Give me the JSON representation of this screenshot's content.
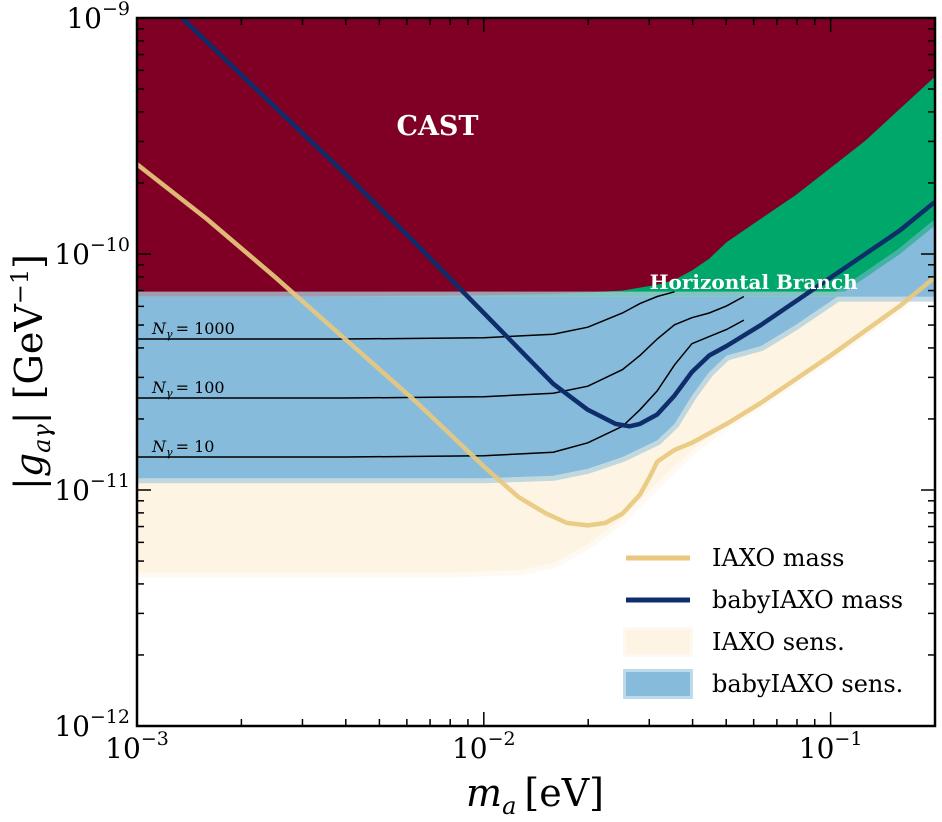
{
  "chart_data": {
    "type": "area",
    "xlabel_main": "m",
    "xlabel_sub": "a",
    "xlabel_unit": "[eV]",
    "ylabel_main": "|g",
    "ylabel_sub": "aγ",
    "ylabel_unit": "| [GeV",
    "ylabel_exp": "−1",
    "ylabel_close": "]",
    "xscale": "log",
    "yscale": "log",
    "xlim": [
      0.001,
      0.2
    ],
    "ylim": [
      1e-12,
      1e-09
    ],
    "x_ticks": [
      {
        "value": 0.001,
        "base": "10",
        "exp": "−3"
      },
      {
        "value": 0.01,
        "base": "10",
        "exp": "−2"
      },
      {
        "value": 0.1,
        "base": "10",
        "exp": "−1"
      }
    ],
    "y_ticks": [
      {
        "value": 1e-12,
        "base": "10",
        "exp": "−12"
      },
      {
        "value": 1e-11,
        "base": "10",
        "exp": "−11"
      },
      {
        "value": 1e-10,
        "base": "10",
        "exp": "−10"
      },
      {
        "value": 1e-09,
        "base": "10",
        "exp": "−9"
      }
    ],
    "colors": {
      "cast": "#7f0024",
      "horizontal_branch": "#00a76b",
      "iaxo_mass": "#e8c87e",
      "iaxo_sens": "#fdf4e3",
      "babyiaxo_mass": "#0e2d6a",
      "babyiaxo_sens": "#86bbdc",
      "contour": "#000000"
    },
    "regions": [
      {
        "name": "CAST",
        "label": "CAST",
        "label_pos": [
          0.0056,
          3.2e-10
        ],
        "boundary_log10_mass": [
          -3,
          -2.5,
          -2,
          -1.8,
          -1.6,
          -1.5,
          -1.45,
          -1.4,
          -1.35,
          -1.3,
          -1.22,
          -1.1,
          -0.9,
          -0.7
        ],
        "boundary_log10_g": [
          -10.18,
          -10.18,
          -10.175,
          -10.17,
          -10.155,
          -10.13,
          -10.11,
          -10.07,
          -10.02,
          -9.95,
          -9.87,
          -9.75,
          -9.52,
          -9.25
        ]
      },
      {
        "name": "Horizontal Branch",
        "label": "Horizontal Branch",
        "label_pos": [
          0.06,
          7.1e-11
        ],
        "limit_g": 6.6e-11
      }
    ],
    "series": [
      {
        "name": "IAXO mass",
        "log10_mass": [
          -3,
          -2.8,
          -2.6,
          -2.4,
          -2.2,
          -2.0,
          -1.9,
          -1.82,
          -1.76,
          -1.7,
          -1.65,
          -1.6,
          -1.55,
          -1.52,
          -1.5,
          -1.45,
          -1.4,
          -1.3,
          -1.2,
          -1.0,
          -0.8,
          -0.7
        ],
        "log10_g": [
          -9.62,
          -9.85,
          -10.1,
          -10.36,
          -10.62,
          -10.9,
          -11.03,
          -11.1,
          -11.14,
          -11.15,
          -11.14,
          -11.1,
          -11.02,
          -10.94,
          -10.88,
          -10.83,
          -10.8,
          -10.72,
          -10.63,
          -10.43,
          -10.22,
          -10.1
        ]
      },
      {
        "name": "babyIAXO mass",
        "log10_mass": [
          -2.87,
          -2.6,
          -2.4,
          -2.2,
          -2.0,
          -1.9,
          -1.8,
          -1.7,
          -1.62,
          -1.58,
          -1.55,
          -1.5,
          -1.45,
          -1.4,
          -1.35,
          -1.3,
          -1.2,
          -1.0,
          -0.8,
          -0.7
        ],
        "log10_g": [
          -9.0,
          -9.38,
          -9.66,
          -9.95,
          -10.25,
          -10.4,
          -10.55,
          -10.66,
          -10.72,
          -10.73,
          -10.72,
          -10.68,
          -10.6,
          -10.5,
          -10.43,
          -10.39,
          -10.3,
          -10.1,
          -9.9,
          -9.78
        ]
      }
    ],
    "bands": [
      {
        "name": "IAXO sens.",
        "flat_log10_g": -11.35,
        "log10_mass": [
          -3,
          -2.5,
          -2.1,
          -1.9,
          -1.8,
          -1.7,
          -1.6,
          -1.5,
          -1.4,
          -1.3,
          -1.2,
          -1.0,
          -0.8,
          -0.7
        ],
        "log10_g": [
          -11.35,
          -11.35,
          -11.35,
          -11.34,
          -11.31,
          -11.23,
          -11.12,
          -10.97,
          -10.83,
          -10.72,
          -10.63,
          -10.43,
          -10.22,
          -10.1
        ]
      },
      {
        "name": "babyIAXO sens.",
        "flat_log10_g": -10.95,
        "log10_mass": [
          -3,
          -2.5,
          -2.0,
          -1.8,
          -1.7,
          -1.6,
          -1.5,
          -1.45,
          -1.4,
          -1.35,
          -1.3,
          -1.2,
          -1.1,
          -1.0,
          -0.8,
          -0.7
        ],
        "log10_g": [
          -10.95,
          -10.95,
          -10.95,
          -10.94,
          -10.91,
          -10.86,
          -10.79,
          -10.72,
          -10.6,
          -10.5,
          -10.43,
          -10.39,
          -10.3,
          -10.2,
          -10.0,
          -9.88
        ]
      }
    ],
    "contours": [
      {
        "label": "= 1000",
        "N": "N",
        "sub": "γ",
        "flat_log10_g": -10.36,
        "log10_mass": [
          -3,
          -2.4,
          -2.0,
          -1.8,
          -1.7,
          -1.6,
          -1.55,
          -1.5,
          -1.45
        ],
        "log10_g": [
          -10.36,
          -10.36,
          -10.355,
          -10.34,
          -10.31,
          -10.25,
          -10.21,
          -10.18,
          -10.16
        ]
      },
      {
        "label": "= 100",
        "N": "N",
        "sub": "γ",
        "flat_log10_g": -10.61,
        "log10_mass": [
          -3,
          -2.4,
          -2.0,
          -1.8,
          -1.7,
          -1.6,
          -1.55,
          -1.5,
          -1.45,
          -1.4,
          -1.35,
          -1.3,
          -1.25
        ],
        "log10_g": [
          -10.61,
          -10.61,
          -10.605,
          -10.59,
          -10.56,
          -10.49,
          -10.43,
          -10.36,
          -10.3,
          -10.27,
          -10.25,
          -10.22,
          -10.18
        ]
      },
      {
        "label": "= 10",
        "N": "N",
        "sub": "γ",
        "flat_log10_g": -10.86,
        "log10_mass": [
          -3,
          -2.4,
          -2.0,
          -1.8,
          -1.7,
          -1.6,
          -1.55,
          -1.5,
          -1.45,
          -1.4,
          -1.35,
          -1.3,
          -1.25
        ],
        "log10_g": [
          -10.86,
          -10.86,
          -10.855,
          -10.84,
          -10.8,
          -10.73,
          -10.66,
          -10.58,
          -10.47,
          -10.38,
          -10.35,
          -10.32,
          -10.28
        ]
      }
    ],
    "legend": {
      "position": "lower-right",
      "entries": [
        {
          "label": "IAXO mass",
          "kind": "line",
          "color_key": "iaxo_mass"
        },
        {
          "label": "babyIAXO mass",
          "kind": "line",
          "color_key": "babyiaxo_mass"
        },
        {
          "label": "IAXO sens.",
          "kind": "patch",
          "color_key": "iaxo_sens"
        },
        {
          "label": "babyIAXO sens.",
          "kind": "patch",
          "color_key": "babyiaxo_sens"
        }
      ]
    }
  }
}
